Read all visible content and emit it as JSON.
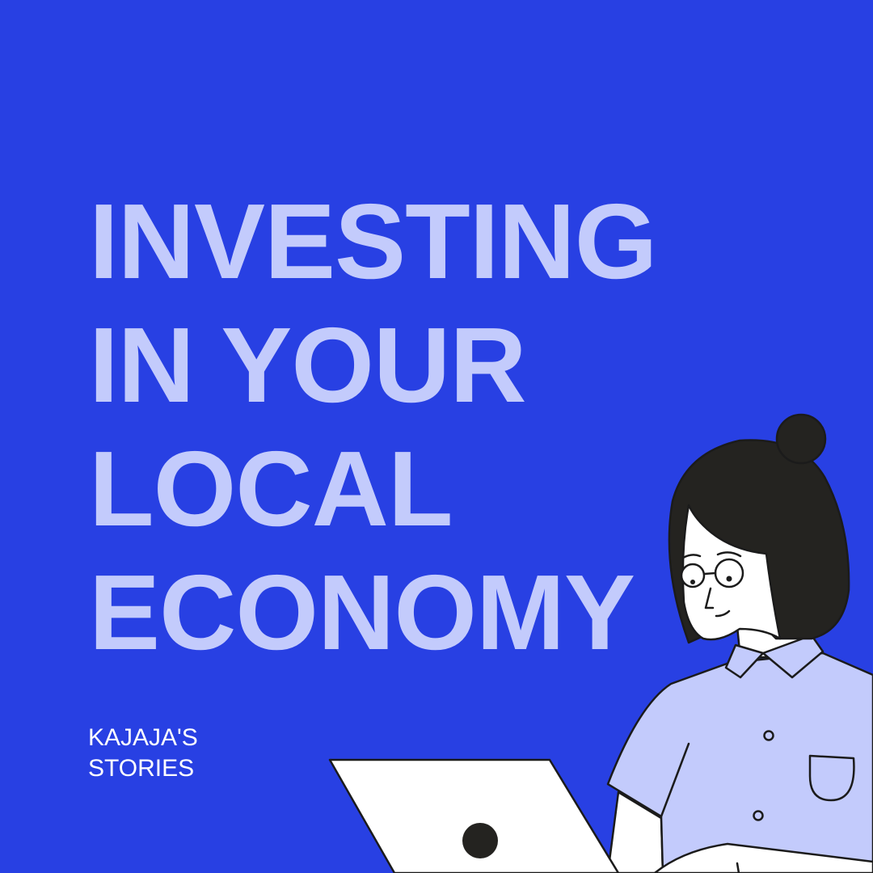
{
  "headline": {
    "lines": [
      "INVESTING",
      "IN YOUR",
      "LOCAL",
      "ECONOMY"
    ]
  },
  "byline": {
    "lines": [
      "KAJAJA'S",
      "STORIES"
    ]
  },
  "illustration": {
    "subject": "woman-with-laptop-illustration"
  },
  "colors": {
    "background": "#2840e3",
    "headline": "#c3cbfc",
    "byline": "#ffffff",
    "hair": "#242320",
    "shirt": "#c3cbfc",
    "skin": "#ffffff",
    "outline": "#1b1b1b"
  }
}
